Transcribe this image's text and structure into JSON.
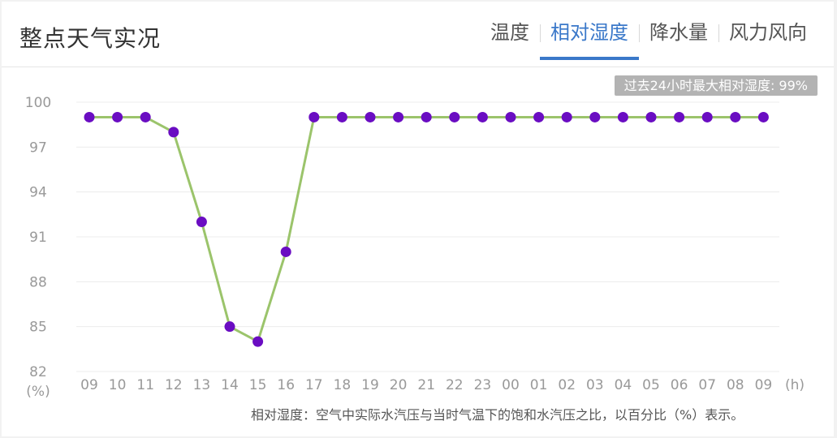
{
  "header": {
    "title": "整点天气实况",
    "tabs": [
      {
        "label": "温度",
        "active": false
      },
      {
        "label": "相对湿度",
        "active": true
      },
      {
        "label": "降水量",
        "active": false
      },
      {
        "label": "风力风向",
        "active": false
      }
    ]
  },
  "badge": {
    "text": "过去24小时最大相对湿度: 99%"
  },
  "colors": {
    "accent": "#3a78c9",
    "line": "#9bc46b",
    "point": "#6a0dc2"
  },
  "chart_data": {
    "type": "line",
    "title": "",
    "xlabel": "(h)",
    "ylabel": "(%)",
    "categories": [
      "09",
      "10",
      "11",
      "12",
      "13",
      "14",
      "15",
      "16",
      "17",
      "18",
      "19",
      "20",
      "21",
      "22",
      "23",
      "00",
      "01",
      "02",
      "03",
      "04",
      "05",
      "06",
      "07",
      "08",
      "09"
    ],
    "series": [
      {
        "values": [
          99,
          99,
          99,
          98,
          92,
          85,
          84,
          90,
          99,
          99,
          99,
          99,
          99,
          99,
          99,
          99,
          99,
          99,
          99,
          99,
          99,
          99,
          99,
          99,
          99
        ]
      }
    ],
    "yticks": [
      "100",
      "97",
      "94",
      "91",
      "88",
      "85",
      "82"
    ],
    "ylim": [
      82,
      100
    ],
    "grid": true,
    "legend": "none"
  },
  "footnote": "相对湿度：空气中实际水汽压与当时气温下的饱和水汽压之比，以百分比（%）表示。"
}
